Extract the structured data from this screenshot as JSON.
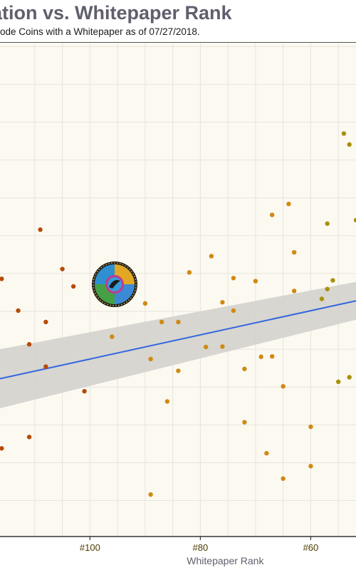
{
  "title": "ation vs. Whitepaper Rank",
  "subtitle": "ode Coins with a Whitepaper as of 07/27/2018.",
  "colors": {
    "panel_bg": "#fcf9f1",
    "grid": "#e6e4de",
    "trend_line": "#3366e0",
    "confidence_band": "#d3d1cc",
    "point_low_rank": "#b84a08",
    "point_mid_rank": "#cf8a12",
    "point_high_rank": "#a8900c"
  },
  "chart_data": {
    "type": "scatter",
    "xlabel": "Whitepaper Rank",
    "ylabel": "",
    "x_axis_reversed": true,
    "xlim": [
      116.3,
      51.8
    ],
    "ylim": [
      0.05,
      13.1
    ],
    "x_ticks": [
      100,
      80,
      60
    ],
    "x_tick_labels": [
      "#100",
      "#80",
      "#60"
    ],
    "grid": true,
    "points": [
      {
        "x": 116,
        "y": 6.86
      },
      {
        "x": 116,
        "y": 2.38
      },
      {
        "x": 113,
        "y": 6.02
      },
      {
        "x": 111,
        "y": 5.13
      },
      {
        "x": 111,
        "y": 2.68
      },
      {
        "x": 109,
        "y": 8.16
      },
      {
        "x": 108,
        "y": 5.72
      },
      {
        "x": 108,
        "y": 4.54
      },
      {
        "x": 105,
        "y": 7.12
      },
      {
        "x": 103,
        "y": 6.66
      },
      {
        "x": 101,
        "y": 3.89
      },
      {
        "x": 96,
        "y": 5.33
      },
      {
        "x": 90,
        "y": 6.21
      },
      {
        "x": 89,
        "y": 4.74
      },
      {
        "x": 89,
        "y": 1.16
      },
      {
        "x": 87,
        "y": 5.72
      },
      {
        "x": 86,
        "y": 3.62
      },
      {
        "x": 84,
        "y": 4.43
      },
      {
        "x": 84,
        "y": 5.72
      },
      {
        "x": 82,
        "y": 7.03
      },
      {
        "x": 79,
        "y": 5.06
      },
      {
        "x": 78,
        "y": 7.46
      },
      {
        "x": 76,
        "y": 6.24
      },
      {
        "x": 76,
        "y": 5.07
      },
      {
        "x": 74,
        "y": 6.88
      },
      {
        "x": 74,
        "y": 6.02
      },
      {
        "x": 72,
        "y": 4.48
      },
      {
        "x": 72,
        "y": 3.07
      },
      {
        "x": 70,
        "y": 6.8
      },
      {
        "x": 69,
        "y": 4.8
      },
      {
        "x": 68,
        "y": 2.25
      },
      {
        "x": 67,
        "y": 8.55
      },
      {
        "x": 67,
        "y": 4.81
      },
      {
        "x": 65,
        "y": 4.02
      },
      {
        "x": 65,
        "y": 1.58
      },
      {
        "x": 64,
        "y": 8.84
      },
      {
        "x": 63,
        "y": 7.56
      },
      {
        "x": 63,
        "y": 6.54
      },
      {
        "x": 60,
        "y": 2.95
      },
      {
        "x": 60,
        "y": 1.91
      },
      {
        "x": 58,
        "y": 6.33
      },
      {
        "x": 57,
        "y": 6.59
      },
      {
        "x": 57,
        "y": 8.32
      },
      {
        "x": 56,
        "y": 6.82
      },
      {
        "x": 55,
        "y": 4.14
      },
      {
        "x": 54,
        "y": 10.7
      },
      {
        "x": 53,
        "y": 4.26
      },
      {
        "x": 53,
        "y": 10.41
      },
      {
        "x": 51.8,
        "y": 8.41
      }
    ],
    "trend": {
      "type": "linear",
      "x": [
        116.3,
        51.8
      ],
      "y": [
        4.22,
        6.28
      ],
      "ci_halfwidth": [
        0.78,
        0.5
      ]
    }
  }
}
